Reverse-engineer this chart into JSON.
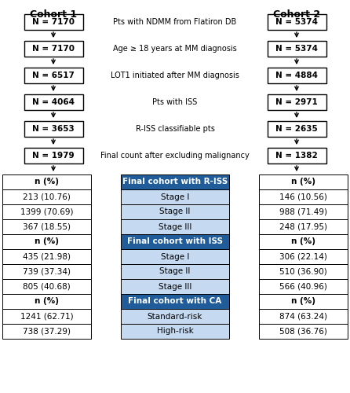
{
  "cohort1_label": "Cohort 1",
  "cohort2_label": "Cohort 2",
  "flow_boxes_c1": [
    "N = 7170",
    "N = 7170",
    "N = 6517",
    "N = 4064",
    "N = 3653",
    "N = 1979"
  ],
  "flow_boxes_c2": [
    "N = 5374",
    "N = 5374",
    "N = 4884",
    "N = 2971",
    "N = 2635",
    "N = 1382"
  ],
  "flow_labels": [
    "Pts with NDMM from Flatiron DB",
    "Age ≥ 18 years at MM diagnosis",
    "LOT1 initiated after MM diagnosis",
    "Pts with ISS",
    "R-ISS classifiable pts",
    "Final count after excluding malignancy"
  ],
  "table_c1_vals": [
    [
      "n (%)",
      true
    ],
    [
      "213 (10.76)",
      false
    ],
    [
      "1399 (70.69)",
      false
    ],
    [
      "367 (18.55)",
      false
    ],
    [
      "n (%)",
      true
    ],
    [
      "435 (21.98)",
      false
    ],
    [
      "739 (37.34)",
      false
    ],
    [
      "805 (40.68)",
      false
    ],
    [
      "n (%)",
      true
    ],
    [
      "1241 (62.71)",
      false
    ],
    [
      "738 (37.29)",
      false
    ]
  ],
  "table_c2_vals": [
    [
      "n (%)",
      true
    ],
    [
      "146 (10.56)",
      false
    ],
    [
      "988 (71.49)",
      false
    ],
    [
      "248 (17.95)",
      false
    ],
    [
      "n (%)",
      true
    ],
    [
      "306 (22.14)",
      false
    ],
    [
      "510 (36.90)",
      false
    ],
    [
      "566 (40.96)",
      false
    ],
    [
      "n (%)",
      true
    ],
    [
      "874 (63.24)",
      false
    ],
    [
      "508 (36.76)",
      false
    ]
  ],
  "table_center_rows": [
    {
      "text": "Final cohort with R-ISS",
      "dark": true
    },
    {
      "text": "Stage I",
      "dark": false
    },
    {
      "text": "Stage II",
      "dark": false
    },
    {
      "text": "Stage III",
      "dark": false
    },
    {
      "text": "Final cohort with ISS",
      "dark": true
    },
    {
      "text": "Stage I",
      "dark": false
    },
    {
      "text": "Stage II",
      "dark": false
    },
    {
      "text": "Stage III",
      "dark": false
    },
    {
      "text": "Final cohort with CA",
      "dark": true
    },
    {
      "text": "Standard-risk",
      "dark": false
    },
    {
      "text": "High-risk",
      "dark": false
    }
  ],
  "color_dark_blue": "#1F5C99",
  "color_light_blue": "#C5D9F1",
  "color_white": "#FFFFFF"
}
